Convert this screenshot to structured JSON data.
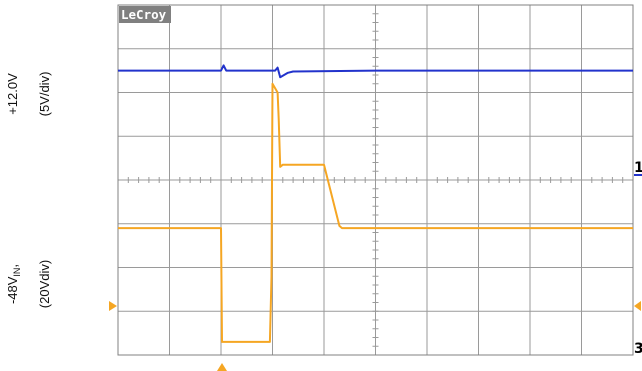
{
  "chart_data": {
    "type": "line",
    "brand": "LeCroy",
    "x_divisions": 10,
    "y_divisions": 8,
    "grid": true,
    "channel_labels": [
      {
        "name": "+12.0V",
        "scale": "(5V/div)"
      },
      {
        "name_main": "-48V",
        "name_sub": "IN",
        "name_suffix": ",",
        "scale": "(20Vdiv)"
      }
    ],
    "series": [
      {
        "color": "#2233cc",
        "x": [
          0,
          2.0,
          2.05,
          2.1,
          2.2,
          3.05,
          3.1,
          3.15,
          3.3,
          3.4,
          5.0,
          10.0
        ],
        "y": [
          6.5,
          6.5,
          6.62,
          6.5,
          6.5,
          6.5,
          6.57,
          6.35,
          6.45,
          6.48,
          6.5,
          6.5
        ]
      },
      {
        "color": "#f5a623",
        "x": [
          0,
          2.0,
          2.02,
          2.95,
          2.98,
          3.0,
          3.1,
          3.12,
          3.15,
          3.2,
          4.0,
          4.3,
          4.35,
          10.0
        ],
        "y": [
          2.9,
          2.9,
          0.3,
          0.3,
          1.8,
          6.2,
          6.0,
          5.4,
          4.3,
          4.35,
          4.35,
          2.95,
          2.9,
          2.9
        ]
      }
    ],
    "markers": [
      {
        "text": "1",
        "color": "#2233cc"
      },
      {
        "text": "3",
        "color": "#f5a623"
      }
    ]
  }
}
